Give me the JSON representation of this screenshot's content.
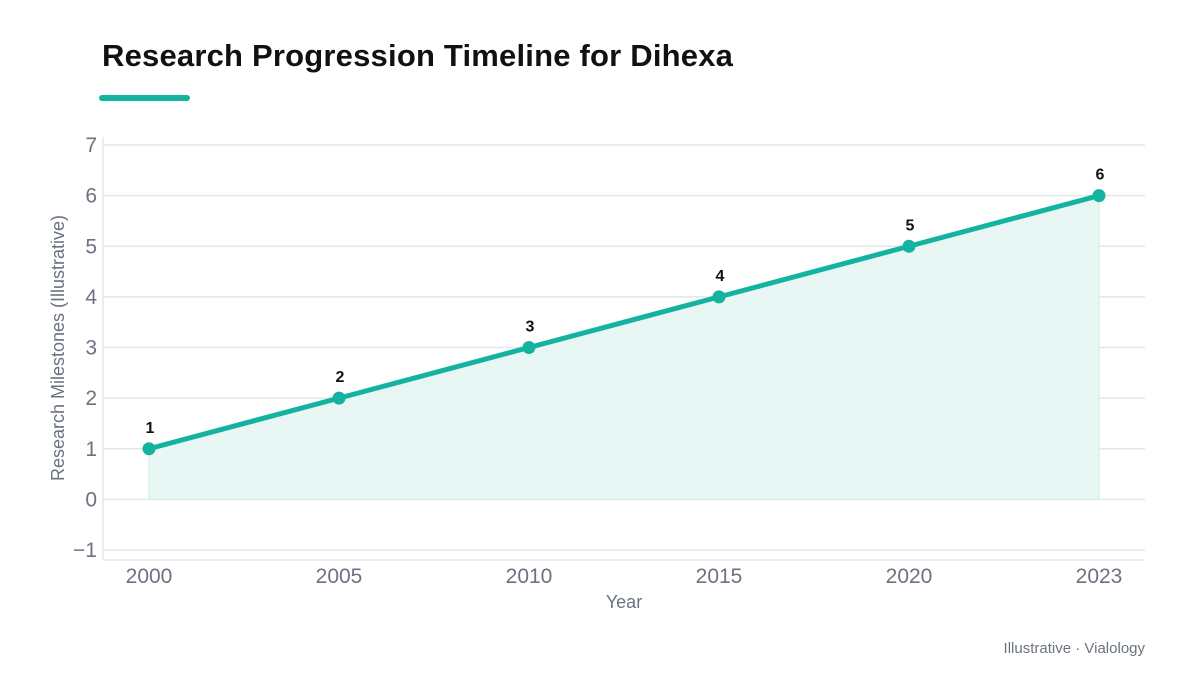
{
  "header": {
    "title": "Research Progression Timeline for Dihexa"
  },
  "footer": {
    "note": "Illustrative · Vialology"
  },
  "colors": {
    "accent": "#14b3a0",
    "area_fill": "#e9f7f4",
    "grid": "#e5e7eb",
    "text_muted": "#6b7280",
    "text_dark": "#111111"
  },
  "chart_data": {
    "type": "line",
    "title": "Research Progression Timeline for Dihexa",
    "xlabel": "Year",
    "ylabel": "Research Milestones (Illustrative)",
    "categories": [
      "2000",
      "2005",
      "2010",
      "2015",
      "2020",
      "2023"
    ],
    "series": [
      {
        "values": [
          1,
          2,
          3,
          4,
          5,
          6
        ]
      }
    ],
    "data_labels": [
      "1",
      "2",
      "3",
      "4",
      "5",
      "6"
    ],
    "y_ticks": [
      "−1",
      "0",
      "1",
      "2",
      "3",
      "4",
      "5",
      "6",
      "7"
    ],
    "ylim": [
      -1,
      7
    ],
    "area_fill": true,
    "grid": "horizontal",
    "legend": "none"
  }
}
